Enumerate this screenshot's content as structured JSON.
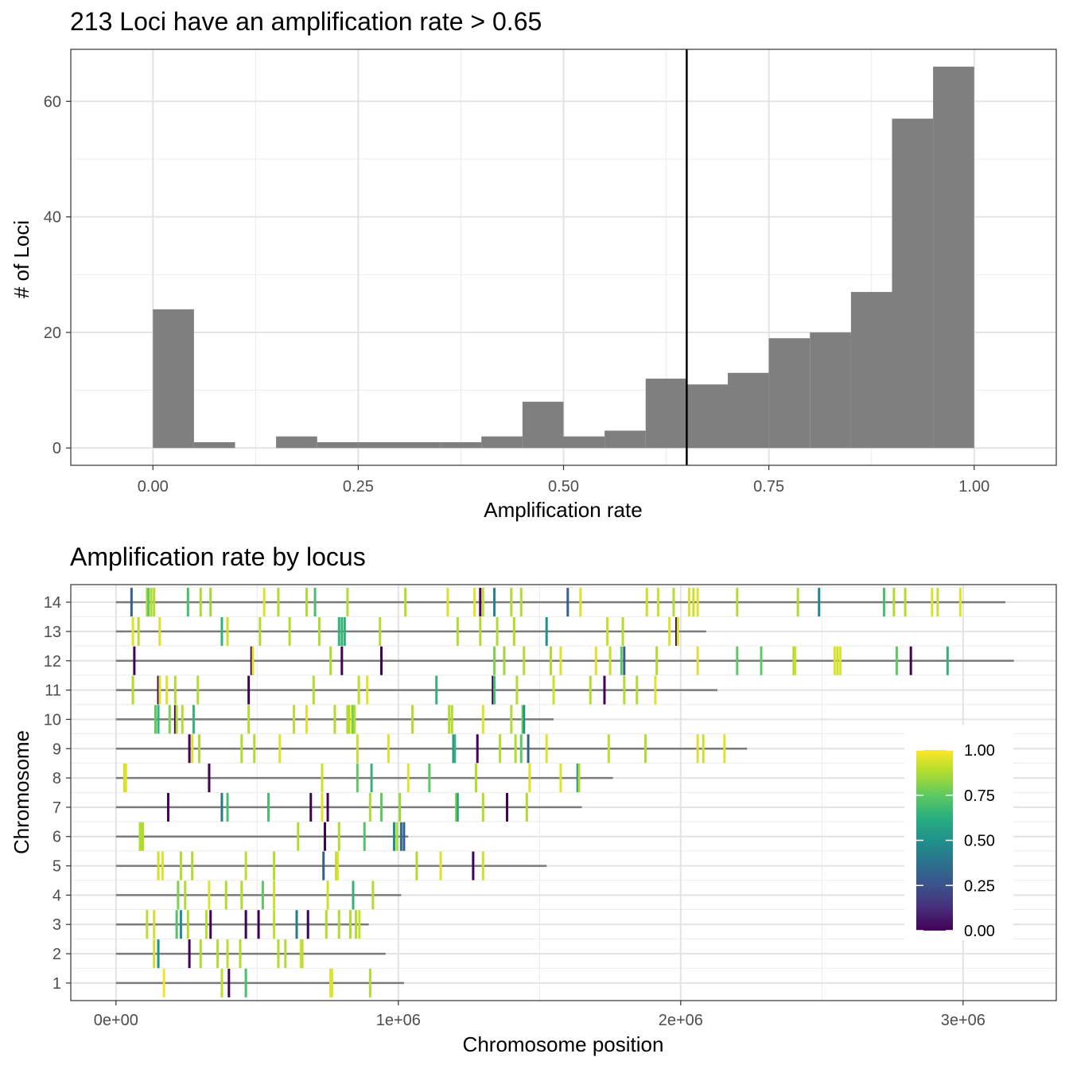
{
  "chart_data": [
    {
      "type": "bar",
      "title": "213 Loci have an amplification rate > 0.65",
      "xlabel": "Amplification rate",
      "ylabel": "# of Loci",
      "xlim": [
        -0.1,
        1.1
      ],
      "ylim": [
        -3,
        69
      ],
      "x_ticks": [
        0.0,
        0.25,
        0.5,
        0.75,
        1.0
      ],
      "x_tick_labels": [
        "0.00",
        "0.25",
        "0.50",
        "0.75",
        "1.00"
      ],
      "y_ticks": [
        0,
        20,
        40,
        60
      ],
      "y_tick_labels": [
        "0",
        "20",
        "40",
        "60"
      ],
      "bin_width": 0.05,
      "bin_starts": [
        0.0,
        0.05,
        0.1,
        0.15,
        0.2,
        0.25,
        0.3,
        0.35,
        0.4,
        0.45,
        0.5,
        0.55,
        0.6,
        0.65,
        0.7,
        0.75,
        0.8,
        0.85,
        0.9,
        0.95
      ],
      "values": [
        24,
        1,
        0,
        2,
        1,
        1,
        1,
        1,
        2,
        8,
        2,
        3,
        12,
        11,
        13,
        19,
        20,
        27,
        57,
        66
      ],
      "threshold_line": 0.65,
      "grid": true,
      "bar_color": "#7f7f7f"
    },
    {
      "type": "scatter",
      "title": "Amplification rate by locus",
      "xlabel": "Chromosome position",
      "ylabel": "Chromosome",
      "xlim": [
        -160000,
        3330000
      ],
      "x_ticks": [
        0,
        1000000,
        2000000,
        3000000
      ],
      "x_tick_labels": [
        "0e+00",
        "1e+06",
        "2e+06",
        "3e+06"
      ],
      "y_tick_labels": [
        "1",
        "2",
        "3",
        "4",
        "5",
        "6",
        "7",
        "8",
        "9",
        "10",
        "11",
        "12",
        "13",
        "14"
      ],
      "grid": true,
      "legend": {
        "position": "right",
        "labels": [
          "1.00",
          "0.75",
          "0.50",
          "0.25",
          "0.00"
        ],
        "values": [
          1.0,
          0.75,
          0.5,
          0.25,
          0.0
        ]
      },
      "chromosome_lengths": [
        1020000,
        955000,
        895000,
        1010000,
        1525000,
        1035000,
        1650000,
        1760000,
        2235000,
        1550000,
        2130000,
        3180000,
        2090000,
        3150000
      ],
      "loci": [
        [
          [
            170000,
            0.98
          ],
          [
            375000,
            0.9
          ],
          [
            400000,
            0.0
          ],
          [
            460000,
            0.7
          ],
          [
            760000,
            0.95
          ],
          [
            765000,
            0.95
          ],
          [
            900000,
            0.88
          ]
        ],
        [
          [
            135000,
            0.93
          ],
          [
            150000,
            0.5
          ],
          [
            260000,
            0.0
          ],
          [
            300000,
            0.88
          ],
          [
            360000,
            0.88
          ],
          [
            395000,
            0.9
          ],
          [
            440000,
            0.88
          ],
          [
            575000,
            0.88
          ],
          [
            600000,
            0.88
          ],
          [
            655000,
            0.92
          ],
          [
            660000,
            0.9
          ]
        ],
        [
          [
            110000,
            0.9
          ],
          [
            135000,
            0.93
          ],
          [
            215000,
            0.72
          ],
          [
            230000,
            0.5
          ],
          [
            255000,
            0.88
          ],
          [
            320000,
            0.9
          ],
          [
            335000,
            0.0
          ],
          [
            460000,
            0.0
          ],
          [
            505000,
            0.0
          ],
          [
            560000,
            0.9
          ],
          [
            640000,
            0.4
          ],
          [
            680000,
            0.0
          ],
          [
            745000,
            0.88
          ],
          [
            790000,
            0.88
          ],
          [
            830000,
            0.88
          ],
          [
            850000,
            0.88
          ],
          [
            862000,
            0.92
          ]
        ],
        [
          [
            220000,
            0.8
          ],
          [
            245000,
            0.88
          ],
          [
            330000,
            0.95
          ],
          [
            390000,
            0.88
          ],
          [
            445000,
            0.88
          ],
          [
            520000,
            0.75
          ],
          [
            560000,
            0.92
          ],
          [
            750000,
            0.92
          ],
          [
            840000,
            0.65
          ],
          [
            910000,
            0.88
          ]
        ],
        [
          [
            150000,
            0.93
          ],
          [
            165000,
            0.95
          ],
          [
            230000,
            0.88
          ],
          [
            270000,
            0.88
          ],
          [
            460000,
            0.9
          ],
          [
            560000,
            0.88
          ],
          [
            735000,
            0.3
          ],
          [
            780000,
            0.88
          ],
          [
            785000,
            0.95
          ],
          [
            1065000,
            0.88
          ],
          [
            1150000,
            0.95
          ],
          [
            1265000,
            0.0
          ],
          [
            1300000,
            0.92
          ]
        ],
        [
          [
            85000,
            0.88
          ],
          [
            90000,
            0.88
          ],
          [
            95000,
            0.88
          ],
          [
            645000,
            0.88
          ],
          [
            740000,
            0.0
          ],
          [
            790000,
            0.88
          ],
          [
            880000,
            0.72
          ],
          [
            985000,
            0.5
          ],
          [
            995000,
            0.88
          ],
          [
            1010000,
            0.35
          ],
          [
            1020000,
            0.3
          ]
        ],
        [
          [
            185000,
            0.0
          ],
          [
            375000,
            0.4
          ],
          [
            395000,
            0.7
          ],
          [
            540000,
            0.7
          ],
          [
            690000,
            0.0
          ],
          [
            730000,
            0.95
          ],
          [
            750000,
            0.0
          ],
          [
            900000,
            0.88
          ],
          [
            940000,
            0.75
          ],
          [
            1005000,
            0.85
          ],
          [
            1205000,
            0.82
          ],
          [
            1210000,
            0.6
          ],
          [
            1300000,
            0.88
          ],
          [
            1385000,
            0.0
          ],
          [
            1455000,
            0.88
          ]
        ],
        [
          [
            30000,
            0.92
          ],
          [
            35000,
            0.95
          ],
          [
            330000,
            0.0
          ],
          [
            730000,
            0.92
          ],
          [
            855000,
            0.75
          ],
          [
            905000,
            0.65
          ],
          [
            1035000,
            0.95
          ],
          [
            1110000,
            0.75
          ],
          [
            1275000,
            0.88
          ],
          [
            1465000,
            0.95
          ],
          [
            1575000,
            0.95
          ],
          [
            1635000,
            0.5
          ],
          [
            1640000,
            0.88
          ]
        ],
        [
          [
            260000,
            0.0
          ],
          [
            270000,
            0.95
          ],
          [
            295000,
            0.88
          ],
          [
            445000,
            0.88
          ],
          [
            490000,
            0.88
          ],
          [
            580000,
            0.95
          ],
          [
            855000,
            0.92
          ],
          [
            965000,
            0.95
          ],
          [
            1195000,
            0.5
          ],
          [
            1200000,
            0.65
          ],
          [
            1280000,
            0.0
          ],
          [
            1360000,
            0.88
          ],
          [
            1415000,
            0.88
          ],
          [
            1435000,
            0.75
          ],
          [
            1460000,
            0.3
          ],
          [
            1525000,
            0.95
          ],
          [
            1745000,
            0.9
          ],
          [
            1875000,
            0.88
          ],
          [
            2060000,
            0.95
          ],
          [
            2080000,
            0.92
          ],
          [
            2155000,
            0.95
          ]
        ],
        [
          [
            140000,
            0.75
          ],
          [
            150000,
            0.65
          ],
          [
            190000,
            0.8
          ],
          [
            210000,
            0.0
          ],
          [
            215000,
            0.88
          ],
          [
            235000,
            0.88
          ],
          [
            275000,
            0.65
          ],
          [
            470000,
            0.88
          ],
          [
            630000,
            0.9
          ],
          [
            675000,
            0.95
          ],
          [
            775000,
            0.88
          ],
          [
            820000,
            0.88
          ],
          [
            825000,
            0.88
          ],
          [
            835000,
            0.95
          ],
          [
            840000,
            0.75
          ],
          [
            845000,
            0.88
          ],
          [
            1050000,
            0.88
          ],
          [
            1180000,
            0.88
          ],
          [
            1190000,
            0.88
          ],
          [
            1300000,
            0.95
          ],
          [
            1400000,
            0.88
          ],
          [
            1440000,
            0.8
          ],
          [
            1445000,
            0.5
          ]
        ],
        [
          [
            60000,
            0.88
          ],
          [
            150000,
            0.0
          ],
          [
            155000,
            0.95
          ],
          [
            180000,
            0.95
          ],
          [
            210000,
            0.88
          ],
          [
            290000,
            0.88
          ],
          [
            470000,
            0.0
          ],
          [
            700000,
            0.88
          ],
          [
            860000,
            0.9
          ],
          [
            890000,
            0.95
          ],
          [
            1135000,
            0.65
          ],
          [
            1335000,
            0.0
          ],
          [
            1340000,
            0.7
          ],
          [
            1420000,
            0.88
          ],
          [
            1550000,
            0.92
          ],
          [
            1680000,
            0.88
          ],
          [
            1730000,
            0.0
          ],
          [
            1800000,
            0.88
          ],
          [
            1845000,
            0.88
          ],
          [
            1910000,
            0.95
          ]
        ],
        [
          [
            65000,
            0.0
          ],
          [
            480000,
            0.0
          ],
          [
            485000,
            0.95
          ],
          [
            760000,
            0.88
          ],
          [
            800000,
            0.0
          ],
          [
            940000,
            0.0
          ],
          [
            1340000,
            0.8
          ],
          [
            1375000,
            0.85
          ],
          [
            1445000,
            0.88
          ],
          [
            1540000,
            0.88
          ],
          [
            1575000,
            0.95
          ],
          [
            1700000,
            0.95
          ],
          [
            1750000,
            0.92
          ],
          [
            1790000,
            0.75
          ],
          [
            1800000,
            0.3
          ],
          [
            1915000,
            0.88
          ],
          [
            2060000,
            0.95
          ],
          [
            2200000,
            0.75
          ],
          [
            2285000,
            0.75
          ],
          [
            2400000,
            0.88
          ],
          [
            2405000,
            0.92
          ],
          [
            2545000,
            0.95
          ],
          [
            2555000,
            0.92
          ],
          [
            2565000,
            0.95
          ],
          [
            2765000,
            0.75
          ],
          [
            2815000,
            0.0
          ],
          [
            2945000,
            0.65
          ]
        ],
        [
          [
            60000,
            0.95
          ],
          [
            80000,
            0.9
          ],
          [
            155000,
            0.95
          ],
          [
            375000,
            0.65
          ],
          [
            395000,
            0.92
          ],
          [
            510000,
            0.88
          ],
          [
            615000,
            0.88
          ],
          [
            720000,
            0.88
          ],
          [
            790000,
            0.65
          ],
          [
            800000,
            0.65
          ],
          [
            810000,
            0.65
          ],
          [
            935000,
            0.88
          ],
          [
            1210000,
            0.88
          ],
          [
            1290000,
            0.88
          ],
          [
            1350000,
            0.88
          ],
          [
            1410000,
            0.88
          ],
          [
            1525000,
            0.5
          ],
          [
            1740000,
            0.92
          ],
          [
            1795000,
            0.88
          ],
          [
            1960000,
            0.95
          ],
          [
            1985000,
            0.0
          ],
          [
            1990000,
            0.95
          ]
        ],
        [
          [
            55000,
            0.3
          ],
          [
            110000,
            0.88
          ],
          [
            115000,
            0.75
          ],
          [
            125000,
            0.88
          ],
          [
            135000,
            0.88
          ],
          [
            255000,
            0.7
          ],
          [
            300000,
            0.88
          ],
          [
            335000,
            0.85
          ],
          [
            525000,
            0.95
          ],
          [
            575000,
            0.88
          ],
          [
            675000,
            0.88
          ],
          [
            705000,
            0.7
          ],
          [
            820000,
            0.88
          ],
          [
            1025000,
            0.88
          ],
          [
            1175000,
            0.95
          ],
          [
            1270000,
            0.95
          ],
          [
            1290000,
            0.0
          ],
          [
            1300000,
            0.9
          ],
          [
            1340000,
            0.45
          ],
          [
            1400000,
            0.88
          ],
          [
            1435000,
            0.88
          ],
          [
            1600000,
            0.3
          ],
          [
            1645000,
            0.95
          ],
          [
            1880000,
            0.92
          ],
          [
            1920000,
            0.92
          ],
          [
            1975000,
            0.88
          ],
          [
            2030000,
            0.95
          ],
          [
            2045000,
            0.92
          ],
          [
            2060000,
            0.95
          ],
          [
            2200000,
            0.88
          ],
          [
            2415000,
            0.88
          ],
          [
            2490000,
            0.45
          ],
          [
            2720000,
            0.7
          ],
          [
            2755000,
            0.88
          ],
          [
            2795000,
            0.88
          ],
          [
            2890000,
            0.95
          ],
          [
            2910000,
            0.92
          ],
          [
            2990000,
            0.95
          ]
        ]
      ]
    }
  ]
}
